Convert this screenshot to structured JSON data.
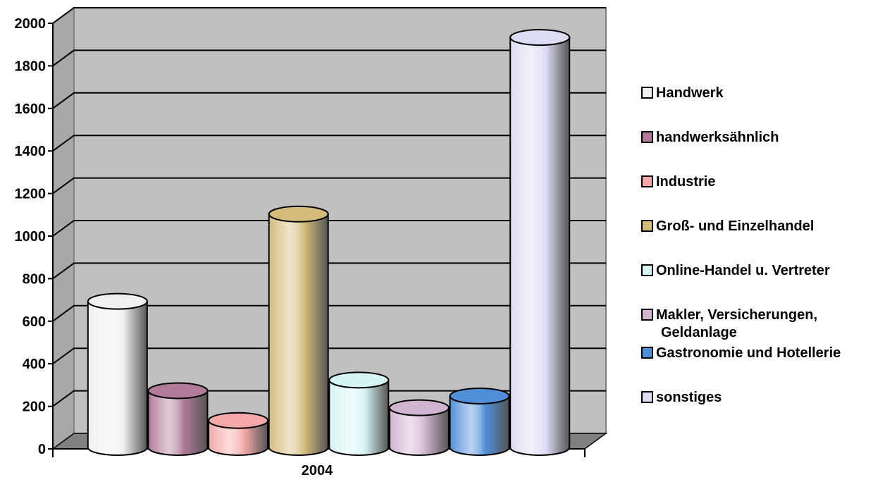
{
  "chart_data": {
    "type": "bar",
    "style": "3d-cylinder",
    "categories": [
      "2004"
    ],
    "series": [
      {
        "name": "Handwerk",
        "values": [
          700
        ],
        "color": "#f0f0f0"
      },
      {
        "name": "handwerksähnlich",
        "values": [
          280
        ],
        "color": "#b07a98"
      },
      {
        "name": "Industrie",
        "values": [
          140
        ],
        "color": "#f4a8a8"
      },
      {
        "name": "Groß- und Einzelhandel",
        "values": [
          1110
        ],
        "color": "#d4bb7a"
      },
      {
        "name": "Online-Handel u. Vertreter",
        "values": [
          330
        ],
        "color": "#d6f4f4"
      },
      {
        "name": "Makler, Versicherungen, Geldanlage",
        "values": [
          200
        ],
        "color": "#d0b4d0"
      },
      {
        "name": "Gastronomie und Hotellerie",
        "values": [
          255
        ],
        "color": "#4f8fd8"
      },
      {
        "name": "sonstiges",
        "values": [
          1940
        ],
        "color": "#dcdcf4"
      }
    ],
    "y_ticks": [
      "0",
      "200",
      "400",
      "600",
      "800",
      "1000",
      "1200",
      "1400",
      "1600",
      "1800",
      "2000"
    ],
    "ylim": [
      0,
      2000
    ],
    "grid": true,
    "legend": "right",
    "wall_color": "#c0c0c0",
    "floor_color": "#808080"
  }
}
